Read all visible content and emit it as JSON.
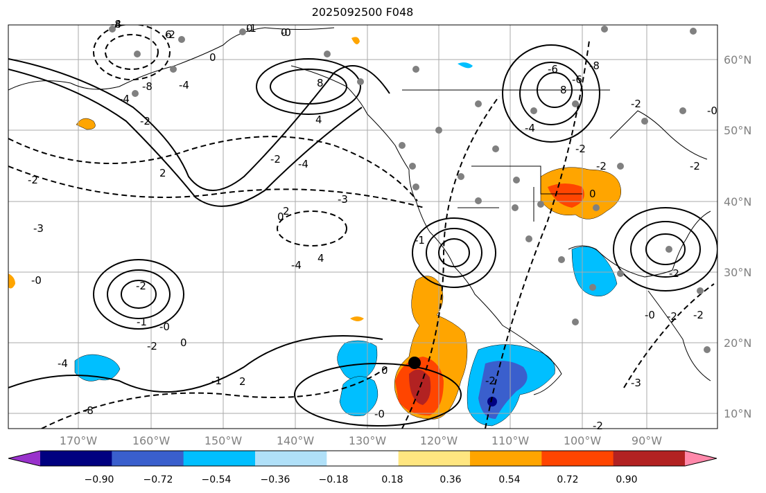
{
  "title": "2025092500 F048",
  "lat_labels": [
    "60°N",
    "50°N",
    "40°N",
    "30°N",
    "20°N",
    "10°N"
  ],
  "lon_labels": [
    "170°W",
    "160°W",
    "150°W",
    "140°W",
    "130°W",
    "120°W",
    "110°W",
    "100°W",
    "90°W"
  ],
  "contour_labels": [
    "-8",
    "6",
    "-1",
    "-0",
    "0",
    "-8",
    "-4",
    "-2",
    "-4",
    "8",
    "4",
    "-2",
    "8",
    "-4",
    "-6",
    "-8",
    "-6",
    "-4",
    "-2",
    "-2",
    "-3",
    "-2",
    "-0",
    "2",
    "2",
    "-2",
    "-0",
    "0",
    "-2",
    "-2",
    "-2",
    "-4",
    "4",
    "-3",
    "-2",
    "-1",
    "-0",
    "0",
    "-2",
    "-4",
    "0",
    "-1",
    "-2",
    "-1",
    "2",
    "-0",
    "0",
    "-3",
    "-0",
    "-2",
    "-2",
    "-8",
    "-4",
    "-2",
    "0",
    "0"
  ],
  "colorbar": {
    "ticks": [
      "−0.90",
      "−0.72",
      "−0.54",
      "−0.36",
      "−0.18",
      "0.18",
      "0.36",
      "0.54",
      "0.72",
      "0.90"
    ],
    "colors": [
      "#9932cc",
      "#000080",
      "#3a5fcd",
      "#00bfff",
      "#b0e0f8",
      "#ffffff",
      "#ffe680",
      "#ffa500",
      "#ff4500",
      "#b22222",
      "#ff88aa"
    ]
  },
  "colors": {
    "grid": "#aaaaaa",
    "coast": "#000000",
    "contour": "#000000"
  }
}
